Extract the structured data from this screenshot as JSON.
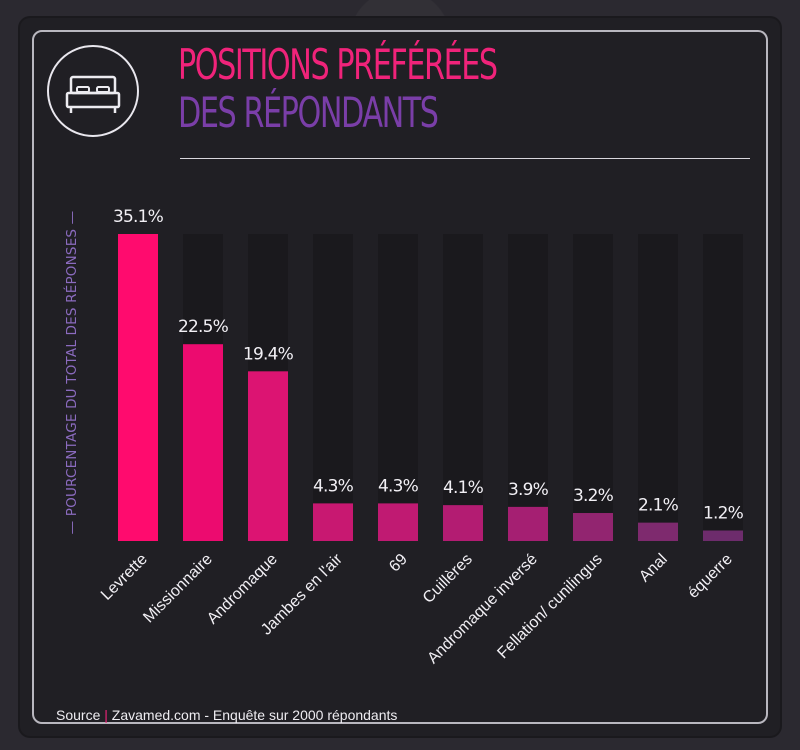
{
  "header": {
    "title_line1": "POSITIONS PRÉFÉRÉES",
    "title_line2": "DES RÉPONDANTS",
    "icon": "bed-icon"
  },
  "source": {
    "label": "Source",
    "separator": "|",
    "text": "Zavamed.com - Enquête sur 2000 répondants"
  },
  "chart_data": {
    "type": "bar",
    "ylabel": "— POURCENTAGE DU TOTAL DES RÉPONSES —",
    "ylim": [
      0,
      35.1
    ],
    "grid": false,
    "categories": [
      "Levrette",
      "Missionnaire",
      "Andromaque",
      "Jambes en l'air",
      "69",
      "Cuillères",
      "Andromaque inversé",
      "Fellation/ cunilingus",
      "Anal",
      "équerre"
    ],
    "values": [
      35.1,
      22.5,
      19.4,
      4.3,
      4.3,
      4.1,
      3.9,
      3.2,
      2.1,
      1.2
    ],
    "value_labels": [
      "35.1%",
      "22.5%",
      "19.4%",
      "4.3%",
      "4.3%",
      "4.1%",
      "3.9%",
      "3.2%",
      "2.1%",
      "1.2%"
    ],
    "colors": [
      "#ff0b6e",
      "#ec0b6f",
      "#dc1472",
      "#c81871",
      "#c01a72",
      "#b31c72",
      "#a51f72",
      "#922570",
      "#7e2a6e",
      "#6d2c6c"
    ],
    "track_color": "#1a191d"
  }
}
